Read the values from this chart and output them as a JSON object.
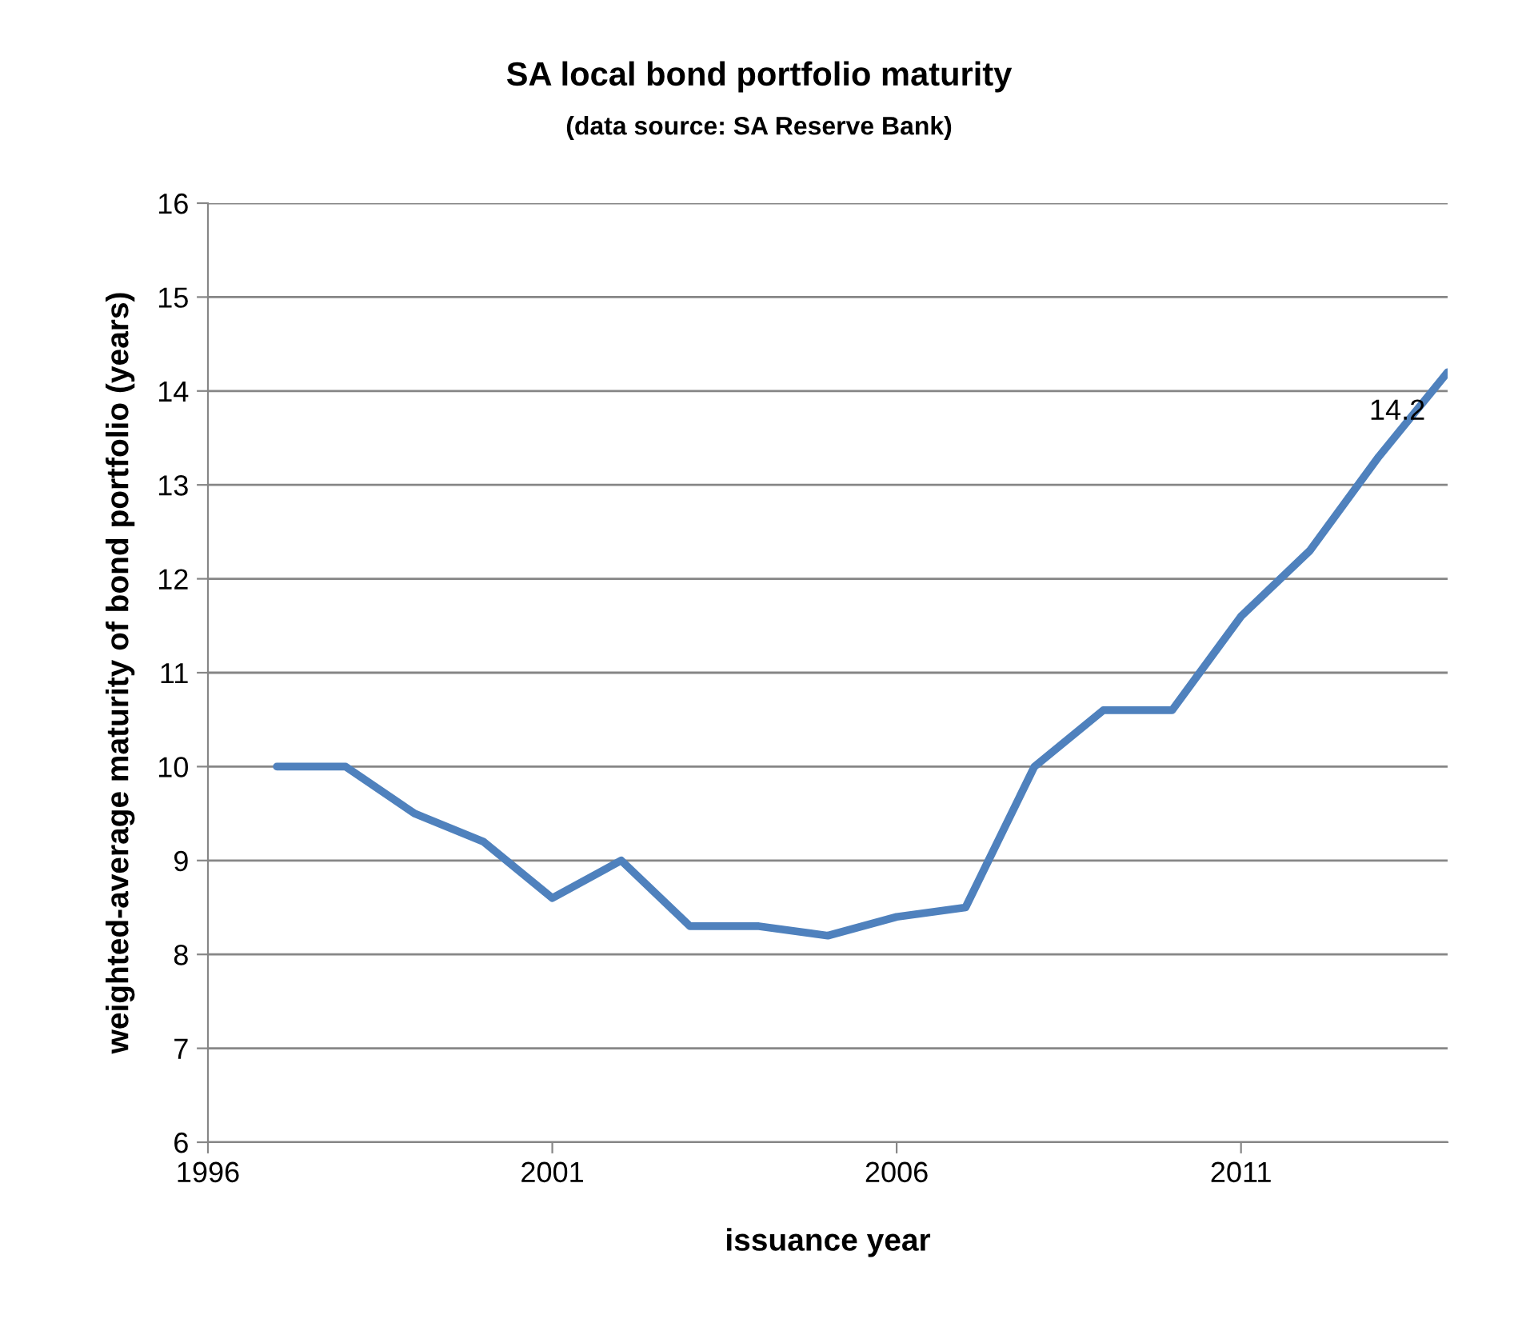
{
  "chart_data": {
    "type": "line",
    "title": "SA local bond portfolio maturity",
    "subtitle": "(data source: SA Reserve Bank)",
    "xlabel": "issuance year",
    "ylabel": "weighted-average maturity of bond portfolio (years)",
    "x": [
      1997,
      1998,
      1999,
      2000,
      2001,
      2002,
      2003,
      2004,
      2005,
      2006,
      2007,
      2008,
      2009,
      2010,
      2011,
      2012,
      2013,
      2014
    ],
    "series": [
      {
        "color": "#4f81bd",
        "values": [
          10.0,
          10.0,
          9.5,
          9.2,
          8.6,
          9.0,
          8.3,
          8.3,
          8.2,
          8.4,
          8.5,
          10.0,
          10.6,
          10.6,
          11.6,
          12.3,
          13.3,
          14.2
        ],
        "value_labels": [
          null,
          null,
          null,
          null,
          null,
          null,
          null,
          null,
          null,
          null,
          null,
          null,
          null,
          null,
          null,
          null,
          null,
          "14.2"
        ]
      }
    ],
    "xlim": [
      1996,
      2014
    ],
    "xticks": [
      1996,
      2001,
      2006,
      2011
    ],
    "ylim": [
      6,
      16
    ],
    "yticks": [
      6,
      7,
      8,
      9,
      10,
      11,
      12,
      13,
      14,
      15,
      16
    ],
    "grid": "y",
    "marker": "none",
    "line_style": "solid"
  }
}
